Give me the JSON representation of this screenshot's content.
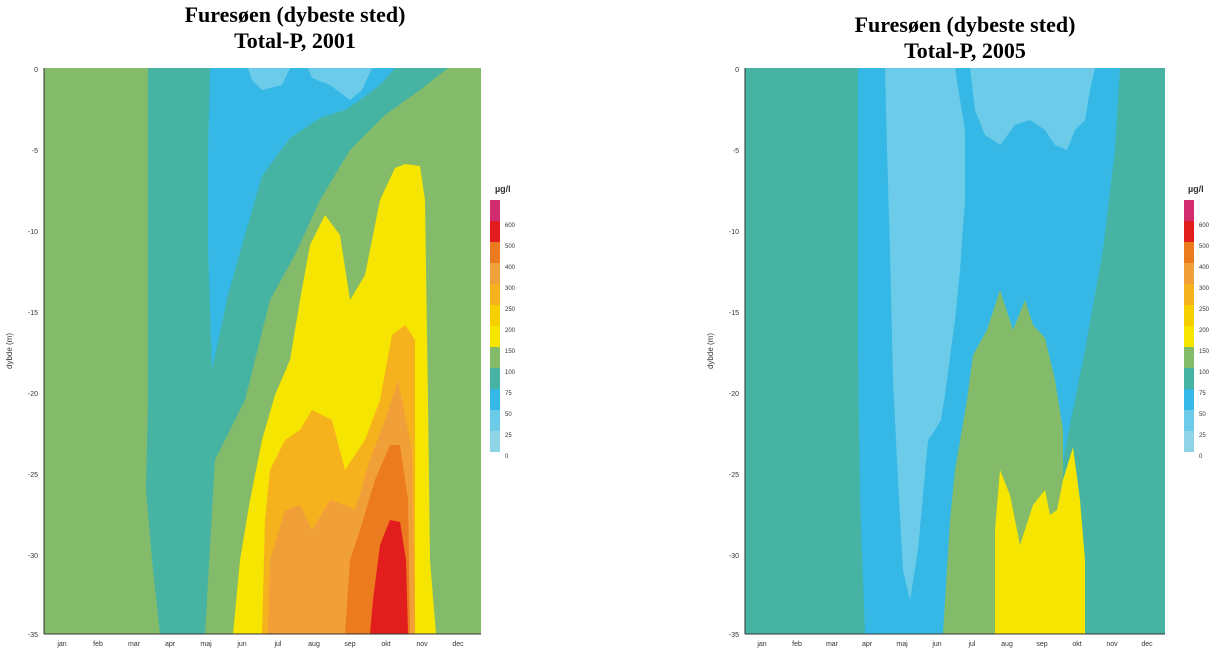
{
  "chart_data": [
    {
      "type": "heatmap",
      "title": "Furesøen (dybeste sted)",
      "subtitle": "Total-P, 2001",
      "ylabel": "dybde (m)",
      "y_ticks": [
        "0",
        "-5",
        "-10",
        "-15",
        "-20",
        "-25",
        "-30",
        "-35"
      ],
      "x_ticks": [
        "jan",
        "feb",
        "mar",
        "apr",
        "maj",
        "jun",
        "jul",
        "aug",
        "sep",
        "okt",
        "nov",
        "dec"
      ],
      "ylim": [
        -35,
        0
      ],
      "colorbar_title": "µg/l",
      "colorbar_levels": [
        "600",
        "500",
        "400",
        "300",
        "250",
        "200",
        "150",
        "100",
        "75",
        "50",
        "25",
        "0"
      ]
    },
    {
      "type": "heatmap",
      "title": "Furesøen (dybeste sted)",
      "subtitle": "Total-P, 2005",
      "ylabel": "dybde (m)",
      "y_ticks": [
        "0",
        "-5",
        "-10",
        "-15",
        "-20",
        "-25",
        "-30",
        "-35"
      ],
      "x_ticks": [
        "jan",
        "feb",
        "mar",
        "apr",
        "maj",
        "jun",
        "jul",
        "aug",
        "sep",
        "okt",
        "nov",
        "dec"
      ],
      "ylim": [
        -35,
        0
      ],
      "colorbar_title": "µg/l",
      "colorbar_levels": [
        "600",
        "500",
        "400",
        "300",
        "250",
        "200",
        "150",
        "100",
        "75",
        "50",
        "25",
        "0"
      ]
    }
  ],
  "colors": {
    "c0": "#8fd3e6",
    "c25": "#6ccbe8",
    "c50": "#36b8e6",
    "c75": "#47b3a3",
    "c100": "#84bb6a",
    "c150": "#f5e500",
    "c200": "#f6cf00",
    "c250": "#f6b21c",
    "c300": "#f19f38",
    "c400": "#ec7a1e",
    "c500": "#e21d1d",
    "c600": "#d12d6e"
  }
}
